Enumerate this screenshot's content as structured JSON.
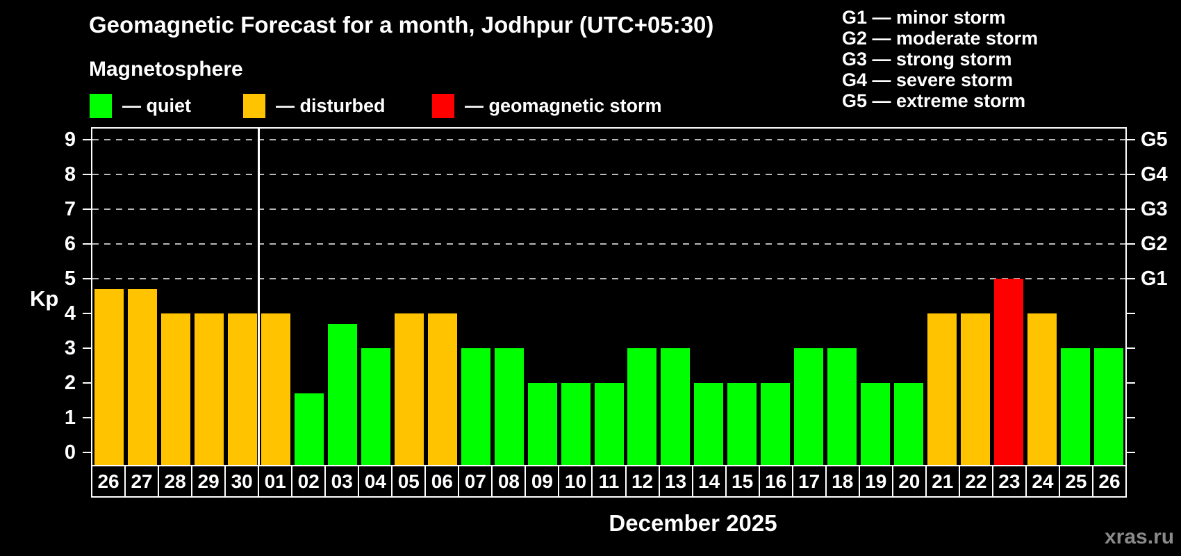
{
  "title": "Geomagnetic Forecast for a month, Jodhpur (UTC+05:30)",
  "subtitle": "Magnetosphere",
  "legend": {
    "items": [
      {
        "key": "quiet",
        "label": "— quiet",
        "color": "#00ff00"
      },
      {
        "key": "disturbed",
        "label": "— disturbed",
        "color": "#ffc300"
      },
      {
        "key": "storm",
        "label": "— geomagnetic storm",
        "color": "#ff0000"
      }
    ]
  },
  "storm_scale_legend": [
    "G1 — minor storm",
    "G2 — moderate storm",
    "G3 — strong storm",
    "G4 — severe storm",
    "G5 — extreme storm"
  ],
  "watermark": "xras.ru",
  "chart_data": {
    "type": "bar",
    "title": "Geomagnetic Forecast for a month, Jodhpur (UTC+05:30)",
    "xlabel": "December 2025",
    "ylabel": "Kp",
    "ylim": [
      0,
      9
    ],
    "y_ticks": [
      0,
      1,
      2,
      3,
      4,
      5,
      6,
      7,
      8,
      9
    ],
    "gridlines_at": [
      5,
      6,
      7,
      8,
      9
    ],
    "grid": "dashed horizontal lines only at storm levels G1–G5",
    "legend_position": "top",
    "right_axis": {
      "labels": [
        "G1",
        "G2",
        "G3",
        "G4",
        "G5"
      ],
      "at_kp": [
        5,
        6,
        7,
        8,
        9
      ]
    },
    "month_separator_after_index": 4,
    "categories": [
      "26",
      "27",
      "28",
      "29",
      "30",
      "01",
      "02",
      "03",
      "04",
      "05",
      "06",
      "07",
      "08",
      "09",
      "10",
      "11",
      "12",
      "13",
      "14",
      "15",
      "16",
      "17",
      "18",
      "19",
      "20",
      "21",
      "22",
      "23",
      "24",
      "25",
      "26"
    ],
    "values": [
      4.7,
      4.7,
      4,
      4,
      4,
      4,
      1.7,
      3.7,
      3,
      4,
      4,
      3,
      3,
      2,
      2,
      2,
      3,
      3,
      2,
      2,
      2,
      3,
      3,
      2,
      2,
      4,
      4,
      5,
      4,
      3,
      3
    ],
    "statuses": [
      "disturbed",
      "disturbed",
      "disturbed",
      "disturbed",
      "disturbed",
      "disturbed",
      "quiet",
      "quiet",
      "quiet",
      "disturbed",
      "disturbed",
      "quiet",
      "quiet",
      "quiet",
      "quiet",
      "quiet",
      "quiet",
      "quiet",
      "quiet",
      "quiet",
      "quiet",
      "quiet",
      "quiet",
      "quiet",
      "quiet",
      "disturbed",
      "disturbed",
      "storm",
      "disturbed",
      "quiet",
      "quiet"
    ]
  }
}
